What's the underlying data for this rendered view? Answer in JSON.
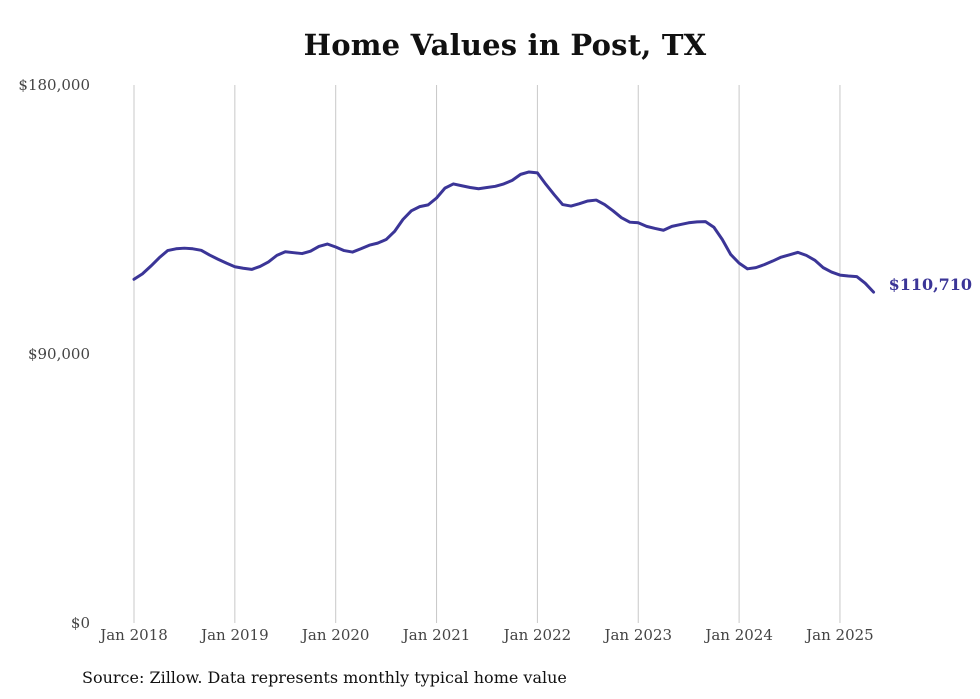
{
  "title": "Home Values in Post, TX",
  "source": "Source: Zillow. Data represents monthly typical home value",
  "colors": {
    "line": "#3b3597",
    "grid": "#c8c8c8",
    "text": "#444444"
  },
  "chart_data": {
    "type": "line",
    "title": "Home Values in Post, TX",
    "xlabel": "",
    "ylabel": "",
    "ylim": [
      0,
      180000
    ],
    "yticks": [
      0,
      90000,
      180000
    ],
    "ytick_labels": [
      "$0",
      "$90,000",
      "$180,000"
    ],
    "xticks": [
      "2018-01",
      "2019-01",
      "2020-01",
      "2021-01",
      "2022-01",
      "2023-01",
      "2024-01",
      "2025-01"
    ],
    "xtick_labels": [
      "Jan 2018",
      "Jan 2019",
      "Jan 2020",
      "Jan 2021",
      "Jan 2022",
      "Jan 2023",
      "Jan 2024",
      "Jan 2025"
    ],
    "grid": "vertical",
    "end_label": "$110,710",
    "series": [
      {
        "x": [
          "2018-01",
          "2018-02",
          "2018-03",
          "2018-04",
          "2018-05",
          "2018-06",
          "2018-07",
          "2018-08",
          "2018-09",
          "2018-10",
          "2018-11",
          "2018-12",
          "2019-01",
          "2019-02",
          "2019-03",
          "2019-04",
          "2019-05",
          "2019-06",
          "2019-07",
          "2019-08",
          "2019-09",
          "2019-10",
          "2019-11",
          "2019-12",
          "2020-01",
          "2020-02",
          "2020-03",
          "2020-04",
          "2020-05",
          "2020-06",
          "2020-07",
          "2020-08",
          "2020-09",
          "2020-10",
          "2020-11",
          "2020-12",
          "2021-01",
          "2021-02",
          "2021-03",
          "2021-04",
          "2021-05",
          "2021-06",
          "2021-07",
          "2021-08",
          "2021-09",
          "2021-10",
          "2021-11",
          "2021-12",
          "2022-01",
          "2022-02",
          "2022-03",
          "2022-04",
          "2022-05",
          "2022-06",
          "2022-07",
          "2022-08",
          "2022-09",
          "2022-10",
          "2022-11",
          "2022-12",
          "2023-01",
          "2023-02",
          "2023-03",
          "2023-04",
          "2023-05",
          "2023-06",
          "2023-07",
          "2023-08",
          "2023-09",
          "2023-10",
          "2023-11",
          "2023-12",
          "2024-01",
          "2024-02",
          "2024-03",
          "2024-04",
          "2024-05",
          "2024-06",
          "2024-07",
          "2024-08",
          "2024-09",
          "2024-10",
          "2024-11",
          "2024-12",
          "2025-01",
          "2025-02",
          "2025-03",
          "2025-04",
          "2025-05"
        ],
        "values": [
          115000,
          116800,
          119400,
          122200,
          124600,
          125200,
          125400,
          125200,
          124700,
          123100,
          121700,
          120400,
          119200,
          118700,
          118300,
          119300,
          120800,
          123000,
          124200,
          123900,
          123600,
          124400,
          126000,
          126800,
          125800,
          124600,
          124100,
          125200,
          126400,
          127100,
          128300,
          131000,
          135000,
          137900,
          139300,
          139900,
          142200,
          145500,
          146900,
          146300,
          145700,
          145300,
          145700,
          146100,
          146900,
          148100,
          150100,
          150900,
          150600,
          146800,
          143300,
          140000,
          139500,
          140300,
          141200,
          141500,
          140000,
          137900,
          135600,
          134100,
          133900,
          132700,
          132000,
          131400,
          132700,
          133300,
          133900,
          134200,
          134300,
          132400,
          128300,
          123300,
          120400,
          118500,
          118900,
          119900,
          121100,
          122400,
          123200,
          124000,
          123000,
          121400,
          118900,
          117400,
          116400,
          116100,
          115900,
          113700,
          110710
        ]
      }
    ]
  }
}
